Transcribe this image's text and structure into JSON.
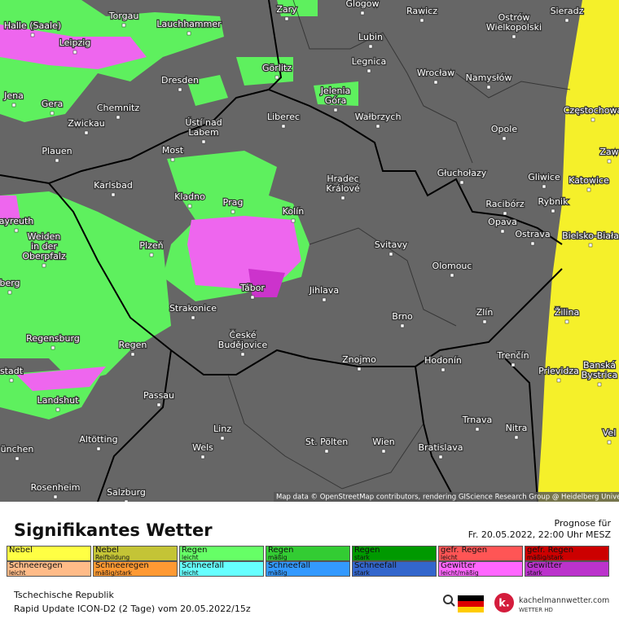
{
  "cities": [
    {
      "lines": [
        "Torgau"
      ]
    },
    {
      "lines": [
        "Lauchhammer"
      ]
    },
    {
      "lines": [
        "Zary"
      ]
    },
    {
      "lines": [
        "Glogow"
      ]
    },
    {
      "lines": [
        "Rawicz"
      ]
    },
    {
      "lines": [
        "Ostrów",
        "Wielkopolski"
      ]
    },
    {
      "lines": [
        "Sieradz"
      ]
    },
    {
      "lines": [
        "Halle (Saale)"
      ]
    },
    {
      "lines": [
        "Leipzig"
      ]
    },
    {
      "lines": [
        "Lubin"
      ]
    },
    {
      "lines": [
        "Legnica"
      ]
    },
    {
      "lines": [
        "Wrocław"
      ]
    },
    {
      "lines": [
        "Namysłów"
      ]
    },
    {
      "lines": [
        "Dresden"
      ]
    },
    {
      "lines": [
        "Görlitz"
      ]
    },
    {
      "lines": [
        "Jelenia",
        "Góra"
      ]
    },
    {
      "lines": [
        "Jena"
      ]
    },
    {
      "lines": [
        "Gera"
      ]
    },
    {
      "lines": [
        "Chemnitz"
      ]
    },
    {
      "lines": [
        "Liberec"
      ]
    },
    {
      "lines": [
        "Wałbrzych"
      ]
    },
    {
      "lines": [
        "Częstochowa"
      ]
    },
    {
      "lines": [
        "Zwickau"
      ]
    },
    {
      "lines": [
        "Ústí nad",
        "Labem"
      ]
    },
    {
      "lines": [
        "Opole"
      ]
    },
    {
      "lines": [
        "Plauen"
      ]
    },
    {
      "lines": [
        "Most"
      ]
    },
    {
      "lines": [
        "Zaw"
      ]
    },
    {
      "lines": [
        "Hradec",
        "Králové"
      ]
    },
    {
      "lines": [
        "Głuchołazy"
      ]
    },
    {
      "lines": [
        "Gliwice"
      ]
    },
    {
      "lines": [
        "Katowice"
      ]
    },
    {
      "lines": [
        "Karlsbad"
      ]
    },
    {
      "lines": [
        "Kladno"
      ]
    },
    {
      "lines": [
        "Prag"
      ]
    },
    {
      "lines": [
        "Racibórz"
      ]
    },
    {
      "lines": [
        "Rybnik"
      ]
    },
    {
      "lines": [
        "Kolín"
      ]
    },
    {
      "lines": [
        "Opava"
      ]
    },
    {
      "lines": [
        "ayreuth"
      ]
    },
    {
      "lines": [
        "Ostrava"
      ]
    },
    {
      "lines": [
        "Bielsko-Biała"
      ]
    },
    {
      "lines": [
        "Weiden",
        "in der",
        "Oberpfalz"
      ]
    },
    {
      "lines": [
        "Plzeň"
      ]
    },
    {
      "lines": [
        "Svitavy"
      ]
    },
    {
      "lines": [
        "Olomouc"
      ]
    },
    {
      "lines": [
        "berg"
      ]
    },
    {
      "lines": [
        "Tábor"
      ]
    },
    {
      "lines": [
        "Jihlava"
      ]
    },
    {
      "lines": [
        "Strakonice"
      ]
    },
    {
      "lines": [
        "Zlín"
      ]
    },
    {
      "lines": [
        "Žilina"
      ]
    },
    {
      "lines": [
        "Brno"
      ]
    },
    {
      "lines": [
        "Regensburg"
      ]
    },
    {
      "lines": [
        "České",
        "Budějovice"
      ]
    },
    {
      "lines": [
        "Regen"
      ]
    },
    {
      "lines": [
        "Trenčín"
      ]
    },
    {
      "lines": [
        "Znojmo"
      ]
    },
    {
      "lines": [
        "Hodonín"
      ]
    },
    {
      "lines": [
        "stadt"
      ]
    },
    {
      "lines": [
        "Prievidza"
      ]
    },
    {
      "lines": [
        "Banská",
        "Bystrica"
      ]
    },
    {
      "lines": [
        "Landshut"
      ]
    },
    {
      "lines": [
        "Passau"
      ]
    },
    {
      "lines": [
        "Trnava"
      ]
    },
    {
      "lines": [
        "Nitra"
      ]
    },
    {
      "lines": [
        "Vel"
      ]
    },
    {
      "lines": [
        "Linz"
      ]
    },
    {
      "lines": [
        "Altötting"
      ]
    },
    {
      "lines": [
        "ünchen"
      ]
    },
    {
      "lines": [
        "Wels"
      ]
    },
    {
      "lines": [
        "St. Pölten"
      ]
    },
    {
      "lines": [
        "Wien"
      ]
    },
    {
      "lines": [
        "Bratislava"
      ]
    },
    {
      "lines": [
        "Rosenheim"
      ]
    },
    {
      "lines": [
        "Salzburg"
      ]
    }
  ],
  "attribution": "Map data © OpenStreetMap contributors, rendering GIScience Research Group @ Heidelberg University",
  "legend": {
    "title": "Signifikantes Wetter",
    "forecast_label": "Prognose für",
    "forecast_time": "Fr. 20.05.2022, 22:00 Uhr MESZ",
    "items": [
      {
        "label": "Nebel",
        "sub": "",
        "color": "#ffff44"
      },
      {
        "label": "Nebel",
        "sub": "Reifbildung",
        "color": "#c4c436"
      },
      {
        "label": "Regen",
        "sub": "leicht",
        "color": "#66ff66"
      },
      {
        "label": "Regen",
        "sub": "mäßig",
        "color": "#33cc33"
      },
      {
        "label": "Regen",
        "sub": "stark",
        "color": "#009900"
      },
      {
        "label": "gefr. Regen",
        "sub": "leicht",
        "color": "#ff5555"
      },
      {
        "label": "gefr. Regen",
        "sub": "mäßig/stark",
        "color": "#cc0000"
      },
      {
        "label": "Schneeregen",
        "sub": "leicht",
        "color": "#ffbb88"
      },
      {
        "label": "Schneeregen",
        "sub": "mäßig/stark",
        "color": "#ff9933"
      },
      {
        "label": "Schneefall",
        "sub": "leicht",
        "color": "#66ffff"
      },
      {
        "label": "Schneefall",
        "sub": "mäßig",
        "color": "#3399ff"
      },
      {
        "label": "Schneefall",
        "sub": "stark",
        "color": "#3366cc"
      },
      {
        "label": "Gewitter",
        "sub": "leicht/mäßig",
        "color": "#ff66ff"
      },
      {
        "label": "Gewitter",
        "sub": "stark",
        "color": "#bb33cc"
      }
    ]
  },
  "footer": {
    "region": "Tschechische Republik",
    "model": "Rapid Update ICON-D2 (2 Tage) vom  20.05.2022/15z",
    "logo": "kachelmannwetter.com",
    "logo_sub": "WETTER HD"
  }
}
